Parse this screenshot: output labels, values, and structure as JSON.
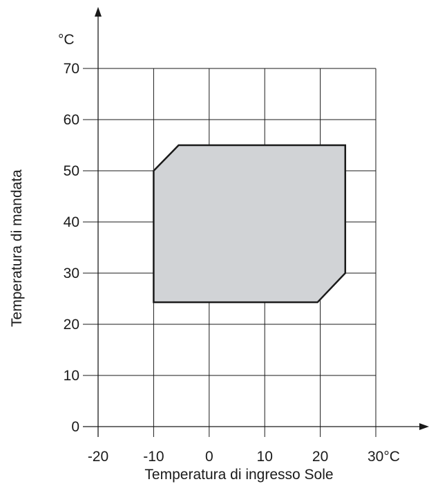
{
  "chart_data": {
    "type": "area",
    "title": "",
    "xlabel": "Temperatura di ingresso Sole",
    "ylabel": "Temperatura di mandata",
    "y_unit_label": "°C",
    "xlim": [
      -20,
      30
    ],
    "ylim": [
      0,
      70
    ],
    "x_ticks": [
      -20,
      -10,
      0,
      10,
      20,
      30
    ],
    "x_tick_labels": [
      "-20",
      "-10",
      "0",
      "10",
      "20",
      "30°C"
    ],
    "y_ticks": [
      0,
      10,
      20,
      30,
      40,
      50,
      60,
      70
    ],
    "y_tick_labels": [
      "0",
      "10",
      "20",
      "30",
      "40",
      "50",
      "60",
      "70"
    ],
    "grid": true,
    "region": {
      "fill": "#d1d3d6",
      "stroke": "#1a1a1a",
      "points": [
        {
          "x": -10,
          "y": 50
        },
        {
          "x": -5.5,
          "y": 55
        },
        {
          "x": 24.5,
          "y": 55
        },
        {
          "x": 24.5,
          "y": 30
        },
        {
          "x": 19.5,
          "y": 24.3
        },
        {
          "x": -10,
          "y": 24.3
        }
      ]
    }
  }
}
